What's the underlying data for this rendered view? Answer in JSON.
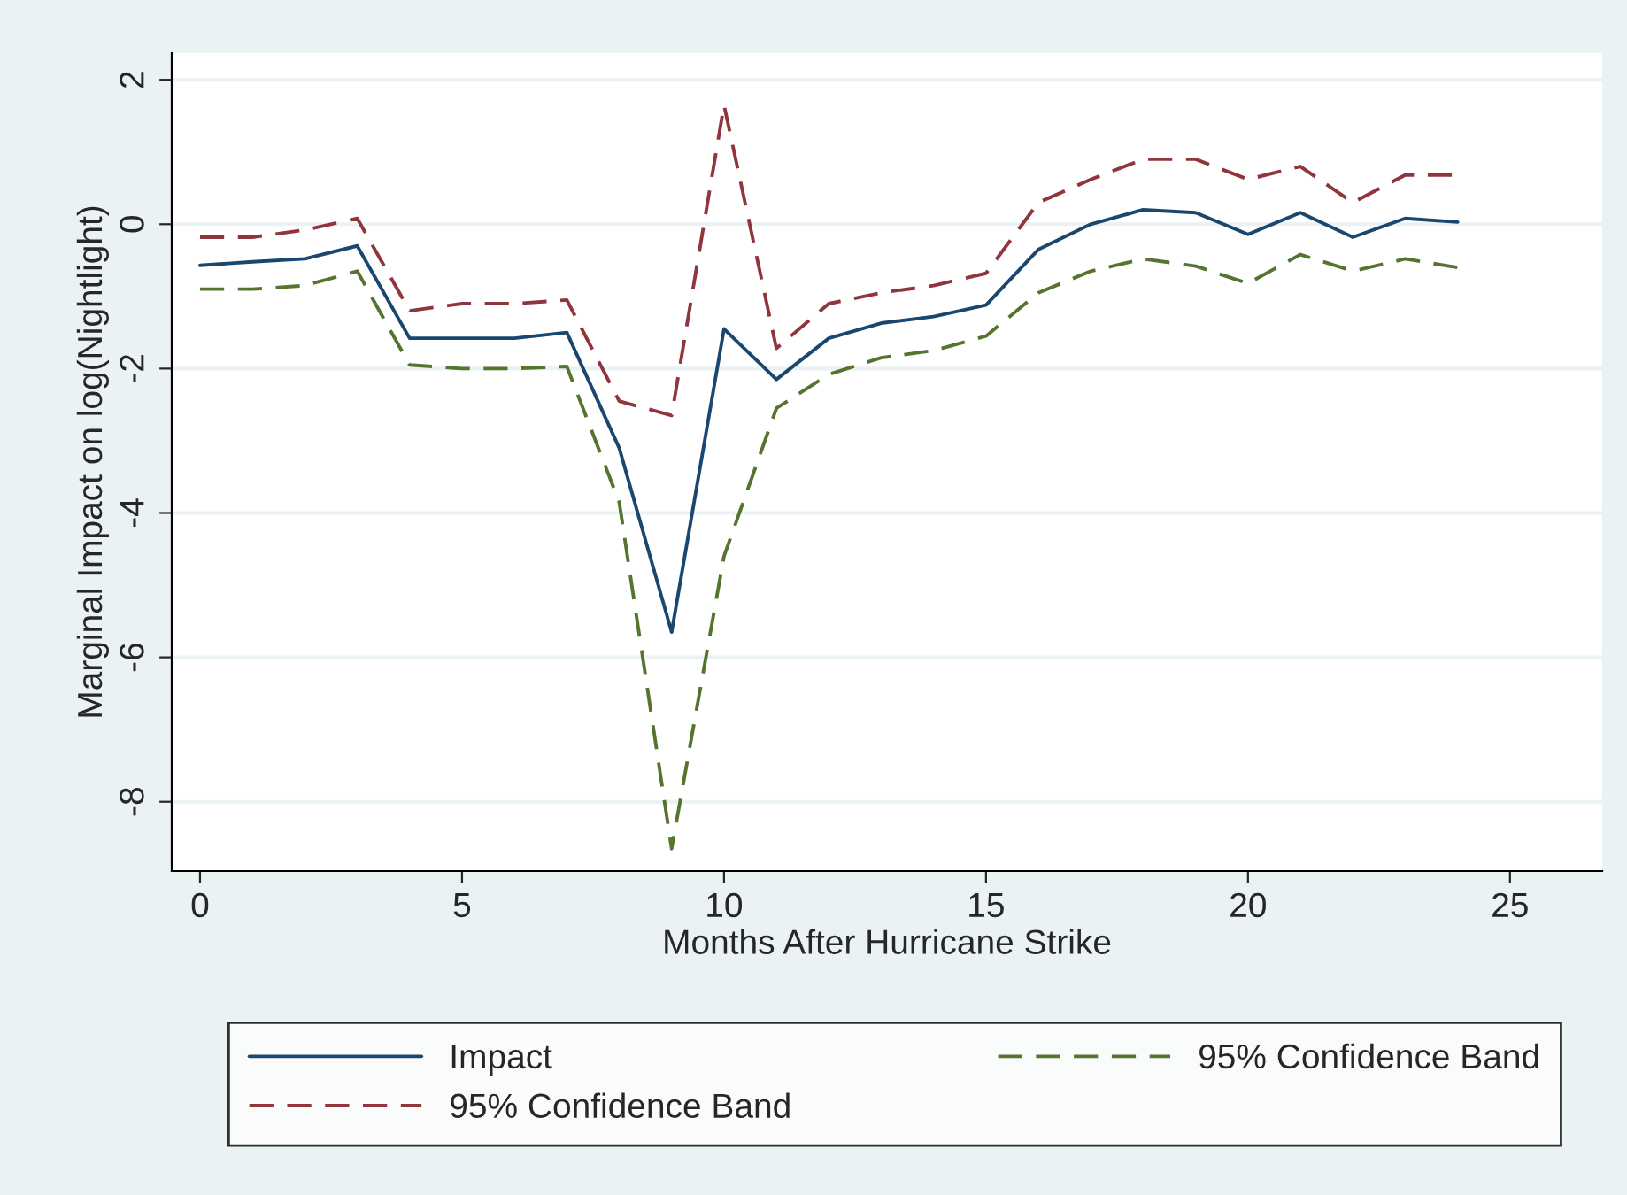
{
  "chart_data": {
    "type": "line",
    "xlabel": "Months After Hurricane Strike",
    "ylabel": "Marginal Impact on log(Nightlight)",
    "x": [
      0,
      1,
      2,
      3,
      4,
      5,
      6,
      7,
      8,
      9,
      10,
      11,
      12,
      13,
      14,
      15,
      16,
      17,
      18,
      19,
      20,
      21,
      22,
      23,
      24
    ],
    "series": [
      {
        "name": "Impact",
        "color": "#1a476f",
        "line_style": "solid",
        "values": [
          -0.57,
          -0.52,
          -0.48,
          -0.3,
          -1.58,
          -1.58,
          -1.58,
          -1.5,
          -3.1,
          -5.65,
          -1.45,
          -2.15,
          -1.58,
          -1.37,
          -1.28,
          -1.12,
          -0.35,
          0.0,
          0.2,
          0.16,
          -0.14,
          0.16,
          -0.18,
          0.08,
          0.03
        ]
      },
      {
        "name": "95% Confidence Band",
        "color": "#90353b",
        "line_style": "dashed",
        "values": [
          -0.18,
          -0.18,
          -0.08,
          0.08,
          -1.2,
          -1.1,
          -1.1,
          -1.05,
          -2.45,
          -2.65,
          1.65,
          -1.72,
          -1.1,
          -0.95,
          -0.85,
          -0.68,
          0.3,
          0.62,
          0.9,
          0.9,
          0.62,
          0.8,
          0.3,
          0.68,
          0.68
        ]
      },
      {
        "name": "95% Confidence Band",
        "color": "#55752f",
        "line_style": "dashed",
        "values": [
          -0.9,
          -0.9,
          -0.85,
          -0.65,
          -1.95,
          -2.0,
          -2.0,
          -1.97,
          -3.85,
          -8.65,
          -4.6,
          -2.55,
          -2.08,
          -1.85,
          -1.75,
          -1.55,
          -0.95,
          -0.65,
          -0.48,
          -0.58,
          -0.82,
          -0.42,
          -0.65,
          -0.48,
          -0.6
        ]
      }
    ],
    "xlim": [
      -0.54,
      26.76
    ],
    "ylim": [
      -8.96,
      2.37
    ],
    "xticks": [
      0,
      5,
      10,
      15,
      20,
      25
    ],
    "yticks": [
      -8,
      -6,
      -4,
      -2,
      0,
      2
    ],
    "grid": "y",
    "legend": "bottom",
    "marker": "none"
  }
}
